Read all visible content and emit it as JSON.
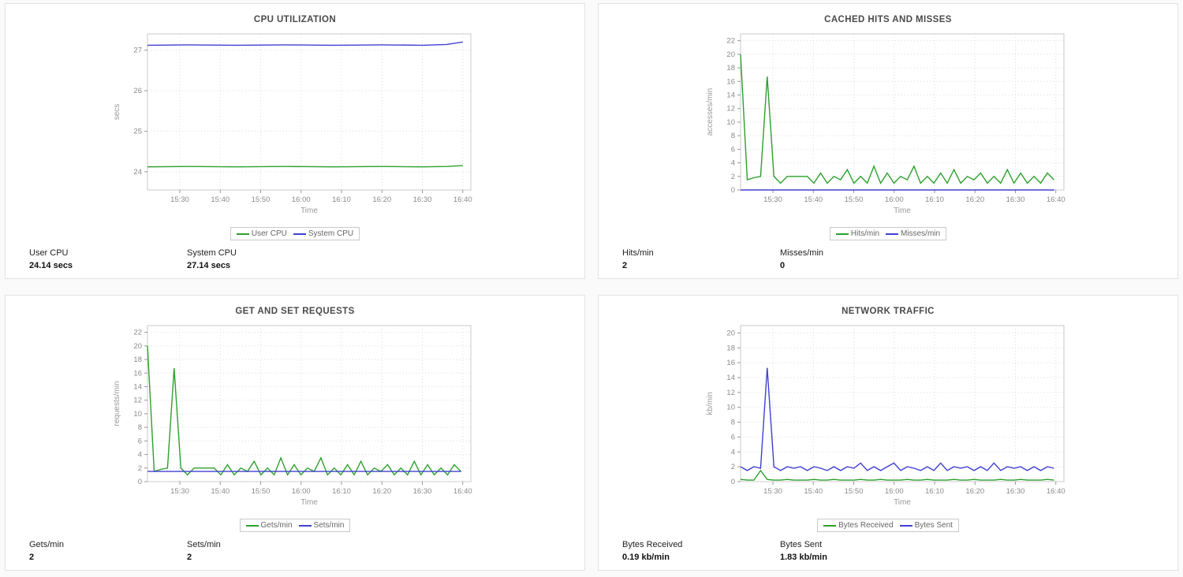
{
  "panels": [
    {
      "title": "CPU UTILIZATION",
      "stats": [
        {
          "label": "User CPU",
          "value": "24.14 secs"
        },
        {
          "label": "System CPU",
          "value": "27.14 secs"
        }
      ]
    },
    {
      "title": "CACHED HITS AND MISSES",
      "stats": [
        {
          "label": "Hits/min",
          "value": "2"
        },
        {
          "label": "Misses/min",
          "value": "0"
        }
      ]
    },
    {
      "title": "GET AND SET REQUESTS",
      "stats": [
        {
          "label": "Gets/min",
          "value": "2"
        },
        {
          "label": "Sets/min",
          "value": "2"
        }
      ]
    },
    {
      "title": "NETWORK TRAFFIC",
      "stats": [
        {
          "label": "Bytes Received",
          "value": "0.19 kb/min"
        },
        {
          "label": "Bytes Sent",
          "value": "1.83 kb/min"
        }
      ]
    }
  ],
  "chart_data": [
    {
      "type": "line",
      "title": "CPU UTILIZATION",
      "xlabel": "Time",
      "ylabel": "secs",
      "xlim": [
        2,
        82
      ],
      "ylim": [
        23.55,
        27.4
      ],
      "y_ticks": [
        24,
        25,
        26,
        27
      ],
      "x_ticks": {
        "positions": [
          10,
          20,
          30,
          40,
          50,
          60,
          70,
          80
        ],
        "labels": [
          "15:30",
          "15:40",
          "15:50",
          "16:00",
          "16:10",
          "16:20",
          "16:30",
          "16:40"
        ]
      },
      "grid": true,
      "legend_position": "bottom",
      "series": [
        {
          "name": "User CPU",
          "color": "#2ca02c",
          "x": [
            2,
            12,
            24,
            36,
            48,
            60,
            70,
            76,
            80
          ],
          "y": [
            24.12,
            24.13,
            24.12,
            24.13,
            24.12,
            24.13,
            24.12,
            24.13,
            24.15
          ]
        },
        {
          "name": "System CPU",
          "color": "#4040d2",
          "x": [
            2,
            12,
            24,
            36,
            48,
            60,
            70,
            76,
            80
          ],
          "y": [
            27.12,
            27.13,
            27.12,
            27.13,
            27.12,
            27.13,
            27.12,
            27.14,
            27.2
          ]
        }
      ]
    },
    {
      "type": "line",
      "title": "CACHED HITS AND MISSES",
      "xlabel": "Time",
      "ylabel": "accesses/min",
      "xlim": [
        2,
        82
      ],
      "ylim": [
        0,
        23
      ],
      "y_ticks": [
        0,
        2,
        4,
        6,
        8,
        10,
        12,
        14,
        16,
        18,
        20,
        22
      ],
      "x_ticks": {
        "positions": [
          10,
          20,
          30,
          40,
          50,
          60,
          70,
          80
        ],
        "labels": [
          "15:30",
          "15:40",
          "15:50",
          "16:00",
          "16:10",
          "16:20",
          "16:30",
          "16:40"
        ]
      },
      "grid": true,
      "legend_position": "bottom",
      "series": [
        {
          "name": "Hits/min",
          "color": "#2ca02c",
          "x_start": 2,
          "x_step": 1.65,
          "y": [
            20,
            1.5,
            1.8,
            2,
            16.7,
            2,
            1,
            2,
            2,
            2,
            2,
            1,
            2.5,
            1,
            2,
            1.5,
            3,
            1,
            2,
            1,
            3.5,
            1,
            2.5,
            1,
            2,
            1.5,
            3.5,
            1,
            2,
            1,
            2.5,
            1,
            3,
            1,
            2,
            1.5,
            2.5,
            1,
            2,
            1,
            3,
            1,
            2.5,
            1,
            2,
            1,
            2.5,
            1.5
          ]
        },
        {
          "name": "Misses/min",
          "color": "#4040d2",
          "x": [
            2,
            79.6
          ],
          "y": [
            0,
            0
          ]
        }
      ]
    },
    {
      "type": "line",
      "title": "GET AND SET REQUESTS",
      "xlabel": "Time",
      "ylabel": "requests/min",
      "xlim": [
        2,
        82
      ],
      "ylim": [
        0,
        23
      ],
      "y_ticks": [
        0,
        2,
        4,
        6,
        8,
        10,
        12,
        14,
        16,
        18,
        20,
        22
      ],
      "x_ticks": {
        "positions": [
          10,
          20,
          30,
          40,
          50,
          60,
          70,
          80
        ],
        "labels": [
          "15:30",
          "15:40",
          "15:50",
          "16:00",
          "16:10",
          "16:20",
          "16:30",
          "16:40"
        ]
      },
      "grid": true,
      "legend_position": "bottom",
      "series": [
        {
          "name": "Gets/min",
          "color": "#2ca02c",
          "x_start": 2,
          "x_step": 1.65,
          "y": [
            20,
            1.5,
            1.8,
            2,
            16.7,
            2,
            1,
            2,
            2,
            2,
            2,
            1,
            2.5,
            1,
            2,
            1.5,
            3,
            1,
            2,
            1,
            3.5,
            1,
            2.5,
            1,
            2,
            1.5,
            3.5,
            1,
            2,
            1,
            2.5,
            1,
            3,
            1,
            2,
            1.5,
            2.5,
            1,
            2,
            1,
            3,
            1,
            2.5,
            1,
            2,
            1,
            2.5,
            1.5
          ]
        },
        {
          "name": "Sets/min",
          "color": "#4040d2",
          "x": [
            2,
            79.6
          ],
          "y": [
            1.5,
            1.5
          ]
        }
      ]
    },
    {
      "type": "line",
      "title": "NETWORK TRAFFIC",
      "xlabel": "Time",
      "ylabel": "kb/min",
      "xlim": [
        2,
        82
      ],
      "ylim": [
        0,
        21
      ],
      "y_ticks": [
        0,
        2,
        4,
        6,
        8,
        10,
        12,
        14,
        16,
        18,
        20
      ],
      "x_ticks": {
        "positions": [
          10,
          20,
          30,
          40,
          50,
          60,
          70,
          80
        ],
        "labels": [
          "15:30",
          "15:40",
          "15:50",
          "16:00",
          "16:10",
          "16:20",
          "16:30",
          "16:40"
        ]
      },
      "grid": true,
      "legend_position": "bottom",
      "series": [
        {
          "name": "Bytes Received",
          "color": "#2ca02c",
          "x_start": 2,
          "x_step": 1.65,
          "y": [
            0.3,
            0.2,
            0.2,
            1.5,
            0.3,
            0.2,
            0.2,
            0.3,
            0.2,
            0.2,
            0.2,
            0.3,
            0.2,
            0.2,
            0.3,
            0.2,
            0.2,
            0.2,
            0.3,
            0.2,
            0.2,
            0.3,
            0.2,
            0.2,
            0.2,
            0.3,
            0.2,
            0.2,
            0.3,
            0.2,
            0.2,
            0.2,
            0.3,
            0.2,
            0.2,
            0.3,
            0.2,
            0.2,
            0.2,
            0.3,
            0.2,
            0.2,
            0.3,
            0.2,
            0.2,
            0.2,
            0.3,
            0.2
          ]
        },
        {
          "name": "Bytes Sent",
          "color": "#4040d2",
          "x_start": 2,
          "x_step": 1.65,
          "y": [
            2,
            1.5,
            2,
            1.8,
            15.3,
            2,
            1.5,
            2,
            1.8,
            2,
            1.5,
            2,
            1.8,
            1.5,
            2,
            1.5,
            2,
            1.8,
            2.5,
            1.5,
            2,
            1.5,
            2,
            2.5,
            1.5,
            2,
            1.8,
            1.5,
            2,
            1.5,
            2.5,
            1.5,
            2,
            1.8,
            2,
            1.5,
            2,
            1.5,
            2.5,
            1.5,
            2,
            1.8,
            2,
            1.5,
            2,
            1.5,
            2,
            1.8
          ]
        }
      ]
    }
  ]
}
